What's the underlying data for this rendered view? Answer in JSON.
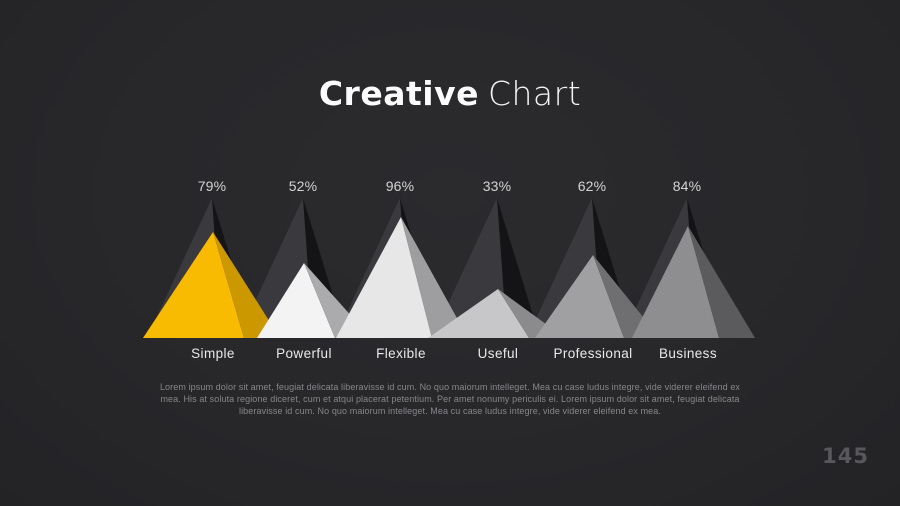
{
  "slide": {
    "title": {
      "bold": "Creative",
      "light": "Chart"
    },
    "description": "Lorem ipsum dolor sit amet, feugiat delicata liberavisse id cum. No quo maiorum intelleget. Mea cu case ludus integre, vide viderer eleifend ex mea. His at soluta regione diceret, cum et atqui placerat petentium. Per amet nonumy periculis ei. Lorem ipsum dolor sit amet, feugiat delicata liberavisse id cum. No quo maiorum intelleget. Mea cu case ludus integre, vide viderer eleifend ex mea.",
    "page_number": "145"
  },
  "chart_data": {
    "type": "bar",
    "variant": "overlapping-3d-pyramid-peaks",
    "title": "Creative Chart",
    "categories": [
      "Simple",
      "Powerful",
      "Flexible",
      "Useful",
      "Professional",
      "Business"
    ],
    "values": [
      79,
      52,
      96,
      33,
      62,
      84
    ],
    "value_labels": [
      "79%",
      "52%",
      "96%",
      "33%",
      "62%",
      "84%"
    ],
    "xlabel": "",
    "ylabel": "",
    "ylim": [
      0,
      100
    ],
    "grid": false,
    "legend": false,
    "colors": {
      "background": "#28282b",
      "accent": "#f8bb02",
      "back_pyramid_left": "#3a3a3e",
      "back_pyramid_right": "#141417",
      "front_faces": [
        "#f8bb02",
        "#f3f3f4",
        "#e7e7e8",
        "#c7c7c9",
        "#a0a0a2",
        "#8e8e90"
      ],
      "front_shadows": [
        "#cc9800",
        "#ababad",
        "#9e9ea0",
        "#8b8b8d",
        "#6f6f71",
        "#5b5b5d"
      ],
      "value_label_text": "#d3d3d4",
      "category_label_text": "#e9e9ea"
    }
  }
}
